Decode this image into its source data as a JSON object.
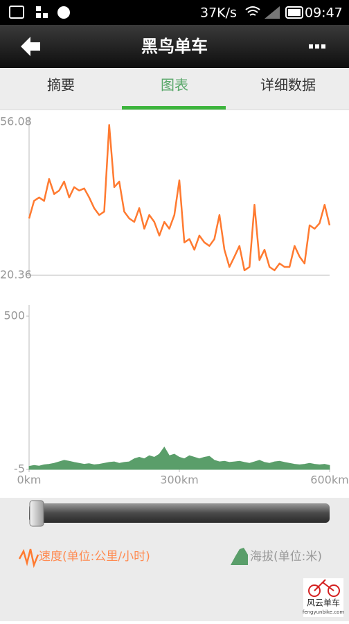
{
  "status_bar": {
    "speed": "37K/s",
    "time": "09:47"
  },
  "header": {
    "title": "黑鸟单车"
  },
  "tabs": [
    "摘要",
    "图表",
    "详细数据"
  ],
  "chart_data": [
    {
      "type": "line",
      "x": [
        0,
        10,
        20,
        30,
        40,
        50,
        60,
        70,
        80,
        90,
        100,
        110,
        120,
        130,
        140,
        150,
        160,
        170,
        180,
        190,
        200,
        210,
        220,
        230,
        240,
        250,
        260,
        270,
        280,
        290,
        300,
        310,
        320,
        330,
        340,
        350,
        360,
        370,
        380,
        390,
        400,
        410,
        420,
        430,
        440,
        450,
        460,
        470,
        480,
        490,
        500,
        510,
        520,
        530,
        540,
        550,
        560,
        570,
        580,
        590,
        600
      ],
      "series": [
        {
          "name": "速度(单位:公里/小时)",
          "color": "#ff7a30",
          "values": [
            33.6,
            37.7,
            38.5,
            37.7,
            42.8,
            39.3,
            40.1,
            42.2,
            38.5,
            40.9,
            40.1,
            40.6,
            38.5,
            36.0,
            34.4,
            35.2,
            55.4,
            40.9,
            42.2,
            35.2,
            33.6,
            32.8,
            36.0,
            31.2,
            34.4,
            32.8,
            29.6,
            32.8,
            31.2,
            34.4,
            42.5,
            28.0,
            28.8,
            26.3,
            29.6,
            28.0,
            27.2,
            28.8,
            34.4,
            26.3,
            22.3,
            24.7,
            27.2,
            21.5,
            22.3,
            36.8,
            23.9,
            26.3,
            22.3,
            21.5,
            23.1,
            22.3,
            22.3,
            27.2,
            24.7,
            23.1,
            32.0,
            31.2,
            32.5,
            36.8,
            32.0
          ]
        }
      ],
      "xlim": [
        0,
        600
      ],
      "ylim": [
        20.36,
        56.08
      ],
      "yticks": [
        20.36,
        56.08
      ]
    },
    {
      "type": "area",
      "x": [
        0,
        10,
        20,
        30,
        40,
        50,
        60,
        70,
        80,
        90,
        100,
        110,
        120,
        130,
        140,
        150,
        160,
        170,
        180,
        190,
        200,
        210,
        220,
        230,
        240,
        250,
        260,
        270,
        280,
        290,
        300,
        310,
        320,
        330,
        340,
        350,
        360,
        370,
        380,
        390,
        400,
        410,
        420,
        430,
        440,
        450,
        460,
        470,
        480,
        490,
        500,
        510,
        520,
        530,
        540,
        550,
        560,
        570,
        580,
        590,
        600
      ],
      "series": [
        {
          "name": "海拔(单位:米)",
          "color": "#5a9e6a",
          "values": [
            5,
            8,
            6,
            10,
            12,
            15,
            20,
            25,
            22,
            18,
            15,
            12,
            14,
            10,
            12,
            15,
            18,
            20,
            15,
            18,
            20,
            30,
            35,
            30,
            40,
            35,
            45,
            68,
            40,
            45,
            35,
            30,
            40,
            35,
            30,
            35,
            38,
            25,
            20,
            22,
            18,
            20,
            22,
            18,
            15,
            20,
            25,
            18,
            15,
            20,
            22,
            18,
            15,
            12,
            10,
            12,
            15,
            12,
            10,
            12,
            8
          ]
        }
      ],
      "xlim": [
        0,
        600
      ],
      "ylim": [
        -5,
        500
      ],
      "yticks": [
        -5,
        500
      ],
      "xticks": [
        {
          "value": 0,
          "label": "0km"
        },
        {
          "value": 300,
          "label": "300km"
        },
        {
          "value": 600,
          "label": "600km"
        }
      ]
    }
  ],
  "watermark": {
    "name": "风云单车",
    "url": "fengyunbike.com"
  }
}
